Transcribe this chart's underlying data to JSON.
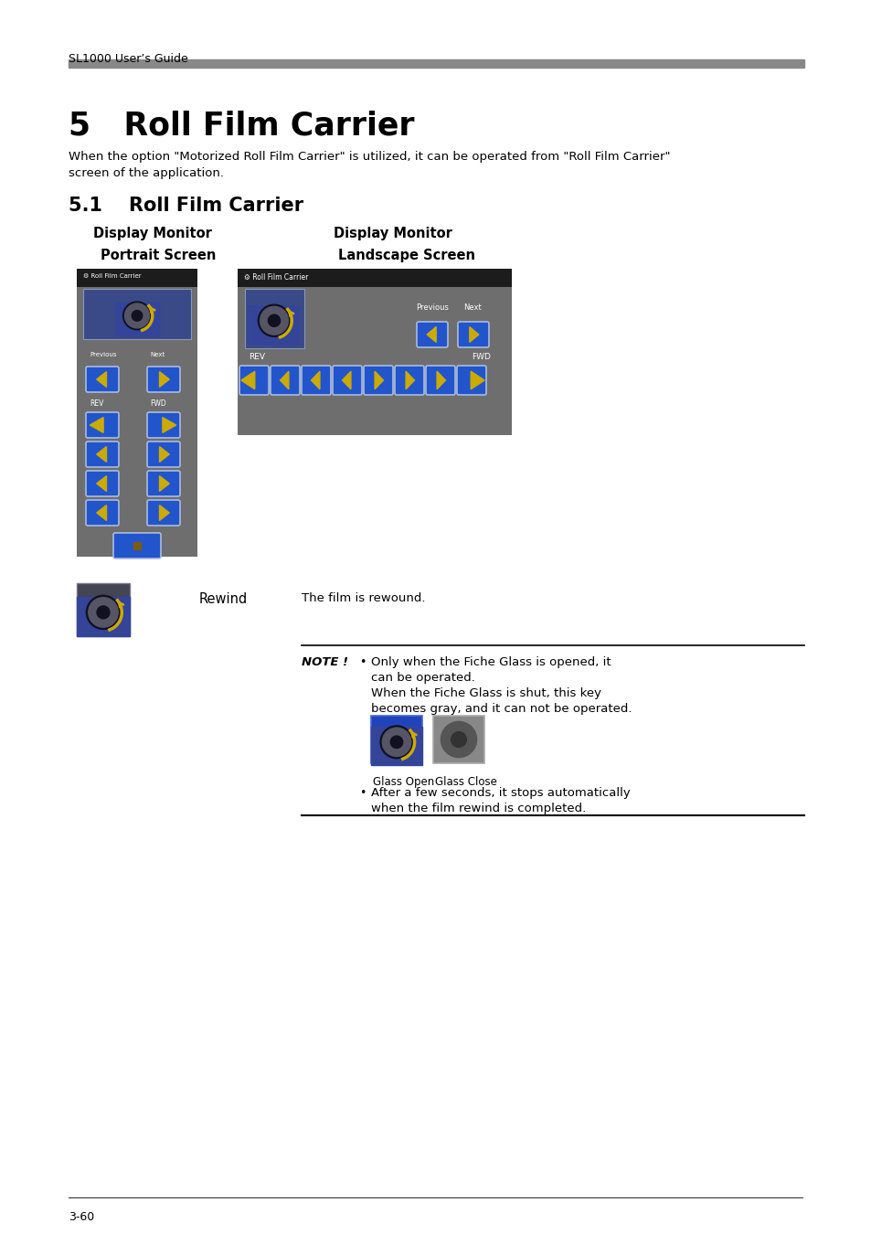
{
  "header_text": "SL1000 User’s Guide",
  "header_bar_color": "#888888",
  "title": "5   Roll Film Carrier",
  "intro_line1": "When the option \"Motorized Roll Film Carrier\" is utilized, it can be operated from \"Roll Film Carrier\"",
  "intro_line2": "screen of the application.",
  "section_title": "5.1    Roll Film Carrier",
  "col1_header": "Display Monitor",
  "col2_header": "Display Monitor",
  "col1_sub": "Portrait Screen",
  "col2_sub": "Landscape Screen",
  "rewind_label": "Rewind",
  "rewind_desc": "The film is rewound.",
  "note_label": "NOTE !",
  "note_b1l1": "Only when the Fiche Glass is opened, it",
  "note_b1l2": "can be operated.",
  "note_b1l3": "When the Fiche Glass is shut, this key",
  "note_b1l4": "becomes gray, and it can not be operated.",
  "glass_open_label": "Glass Open",
  "glass_close_label": "Glass Close",
  "note_b2l1": "After a few seconds, it stops automatically",
  "note_b2l2": "when the film rewind is completed.",
  "footer_text": "3-60",
  "bg_color": "#ffffff",
  "text_color": "#000000",
  "gray_bar_color": "#888888",
  "portrait_bg": "#6e6e6e",
  "portrait_header_bg": "#1c1c1c",
  "landscape_bg": "#6e6e6e",
  "landscape_header_bg": "#1c1c1c",
  "btn_blue": "#2255cc",
  "btn_dark": "#1a3a88",
  "btn_yellow": "#ccaa00",
  "btn_brown": "#7a5c10"
}
